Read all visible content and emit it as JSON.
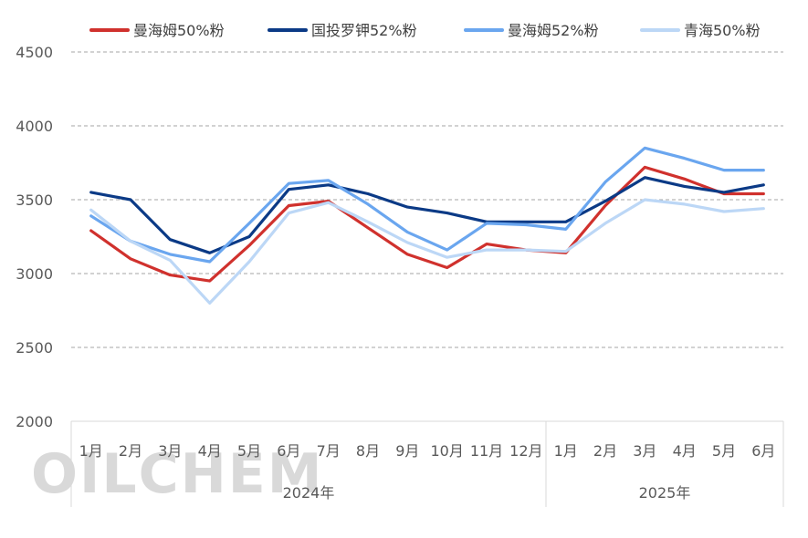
{
  "chart_data": {
    "type": "line",
    "title": "",
    "xlabel": "",
    "ylabel": "",
    "ylim": [
      2000,
      4500
    ],
    "yticks": [
      2000,
      2500,
      3000,
      3500,
      4000,
      4500
    ],
    "grid": true,
    "legend_position": "top",
    "categories": [
      "1月",
      "2月",
      "3月",
      "4月",
      "5月",
      "6月",
      "7月",
      "8月",
      "9月",
      "10月",
      "11月",
      "12月",
      "1月",
      "2月",
      "3月",
      "4月",
      "5月",
      "6月"
    ],
    "year_groups": [
      {
        "label": "2024年",
        "count": 12
      },
      {
        "label": "2025年",
        "count": 6
      }
    ],
    "series": [
      {
        "name": "曼海姆50%粉",
        "color": "#d0312d",
        "values": [
          3290,
          3100,
          2990,
          2950,
          3190,
          3460,
          3490,
          3310,
          3130,
          3040,
          3200,
          3160,
          3140,
          3460,
          3720,
          3640,
          3540,
          3540
        ]
      },
      {
        "name": "国投罗钾52%粉",
        "color": "#0b3a86",
        "values": [
          3550,
          3500,
          3230,
          3140,
          3250,
          3570,
          3600,
          3540,
          3450,
          3410,
          3350,
          3350,
          3350,
          3490,
          3650,
          3590,
          3550,
          3600
        ]
      },
      {
        "name": "曼海姆52%粉",
        "color": "#6aa6ef",
        "values": [
          3390,
          3220,
          3130,
          3080,
          3340,
          3610,
          3630,
          3470,
          3280,
          3160,
          3340,
          3330,
          3300,
          3620,
          3850,
          3780,
          3700,
          3700
        ]
      },
      {
        "name": "青海50%粉",
        "color": "#bcd7f6",
        "values": [
          3430,
          3220,
          3090,
          2800,
          3080,
          3410,
          3480,
          3350,
          3210,
          3110,
          3160,
          3160,
          3150,
          3340,
          3500,
          3470,
          3420,
          3440
        ]
      }
    ],
    "watermark": "OILCHEM"
  }
}
